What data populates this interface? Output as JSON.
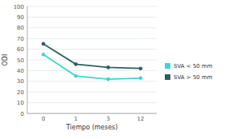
{
  "chart_data": {
    "type": "line",
    "categories": [
      "0",
      "1",
      "3",
      "12"
    ],
    "series": [
      {
        "name": "SVA < 50 mm",
        "color": "#40d4d4",
        "values": [
          55,
          35,
          32,
          33
        ]
      },
      {
        "name": "SVA > 50 mm",
        "color": "#2a6060",
        "values": [
          65,
          46,
          43,
          42
        ]
      }
    ],
    "x_label": "Tiempo (meses)",
    "y_label": "ODI",
    "ylim": [
      0,
      100
    ],
    "yticks": [
      0,
      10,
      20,
      30,
      40,
      50,
      60,
      70,
      80,
      90,
      100
    ],
    "grid": true,
    "legend": "right",
    "marker": "circle"
  }
}
